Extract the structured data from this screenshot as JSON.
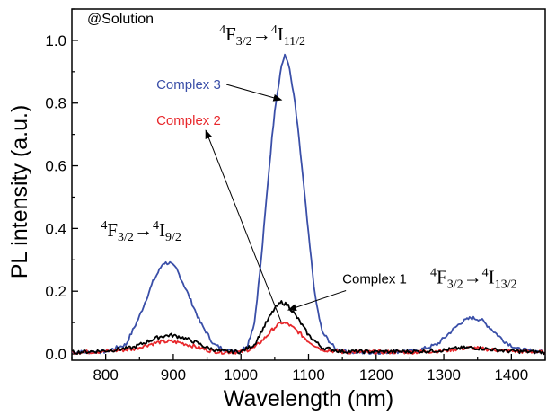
{
  "chart_data": {
    "type": "line",
    "title": "",
    "xlabel": "Wavelength (nm)",
    "ylabel": "PL intensity (a.u.)",
    "xlim": [
      750,
      1450
    ],
    "ylim": [
      -0.02,
      1.1
    ],
    "xticks": [
      800,
      900,
      1000,
      1100,
      1200,
      1300,
      1400
    ],
    "yticks": [
      0.0,
      0.2,
      0.4,
      0.6,
      0.8,
      1.0
    ],
    "xtick_labels": [
      "800",
      "900",
      "1000",
      "1100",
      "1200",
      "1300",
      "1400"
    ],
    "ytick_labels": [
      "0.0",
      "0.2",
      "0.4",
      "0.6",
      "0.8",
      "1.0"
    ],
    "grid": false,
    "corner_label": "@Solution",
    "series": [
      {
        "name": "Complex 3",
        "color": "#3a4fa8",
        "x": [
          750,
          800,
          830,
          850,
          870,
          885,
          895,
          905,
          920,
          940,
          960,
          980,
          1000,
          1010,
          1020,
          1030,
          1040,
          1050,
          1060,
          1065,
          1070,
          1080,
          1090,
          1100,
          1110,
          1120,
          1140,
          1160,
          1200,
          1260,
          1290,
          1310,
          1325,
          1340,
          1355,
          1370,
          1390,
          1410,
          1450
        ],
        "y": [
          0.005,
          0.008,
          0.03,
          0.12,
          0.23,
          0.29,
          0.29,
          0.27,
          0.2,
          0.1,
          0.03,
          0.01,
          0.01,
          0.03,
          0.1,
          0.3,
          0.55,
          0.78,
          0.92,
          0.95,
          0.93,
          0.8,
          0.6,
          0.38,
          0.18,
          0.07,
          0.015,
          0.005,
          0.005,
          0.01,
          0.03,
          0.07,
          0.1,
          0.115,
          0.11,
          0.08,
          0.04,
          0.015,
          0.005
        ]
      },
      {
        "name": "Complex 2",
        "color": "#e8282c",
        "x": [
          750,
          800,
          840,
          860,
          880,
          895,
          910,
          930,
          950,
          970,
          1000,
          1020,
          1035,
          1050,
          1060,
          1070,
          1085,
          1100,
          1120,
          1150,
          1200,
          1260,
          1300,
          1320,
          1340,
          1360,
          1390,
          1450
        ],
        "y": [
          0.005,
          0.008,
          0.015,
          0.028,
          0.038,
          0.04,
          0.036,
          0.025,
          0.012,
          0.006,
          0.006,
          0.02,
          0.05,
          0.085,
          0.1,
          0.095,
          0.07,
          0.04,
          0.014,
          0.006,
          0.006,
          0.006,
          0.01,
          0.016,
          0.02,
          0.016,
          0.01,
          0.005
        ]
      },
      {
        "name": "Complex 1",
        "color": "#000000",
        "x": [
          750,
          800,
          840,
          860,
          880,
          895,
          910,
          930,
          950,
          970,
          1000,
          1020,
          1035,
          1050,
          1060,
          1070,
          1085,
          1100,
          1120,
          1150,
          1200,
          1260,
          1300,
          1320,
          1340,
          1360,
          1390,
          1450
        ],
        "y": [
          0.005,
          0.01,
          0.02,
          0.038,
          0.055,
          0.06,
          0.055,
          0.04,
          0.02,
          0.008,
          0.007,
          0.03,
          0.09,
          0.145,
          0.165,
          0.155,
          0.11,
          0.06,
          0.02,
          0.008,
          0.007,
          0.008,
          0.012,
          0.018,
          0.02,
          0.017,
          0.01,
          0.005
        ]
      }
    ],
    "annotations": {
      "legend_labels": [
        {
          "text": "Complex 3",
          "color": "#3a4fa8",
          "at": [
            875,
            0.845
          ],
          "arrow_to": [
            1060,
            0.81
          ]
        },
        {
          "text": "Complex 2",
          "color": "#e8282c",
          "at": [
            875,
            0.73
          ],
          "arrow_to": [
            1060,
            0.1
          ]
        },
        {
          "text": "Complex 1",
          "color": "#000000",
          "at": [
            1150,
            0.225
          ],
          "arrow_to": [
            1070,
            0.14
          ]
        }
      ],
      "transitions": [
        {
          "id": "t1",
          "base1": "F",
          "sup1": "4",
          "sub1": "3/2",
          "arrow": "→",
          "sup2": "4",
          "base2": "I",
          "sub2": "11/2",
          "at": [
            968,
            1.0
          ]
        },
        {
          "id": "t2",
          "base1": "F",
          "sup1": "4",
          "sub1": "3/2",
          "arrow": "→",
          "sup2": "4",
          "base2": "I",
          "sub2": "9/2",
          "at": [
            793,
            0.375
          ]
        },
        {
          "id": "t3",
          "base1": "F",
          "sup1": "4",
          "sub1": "3/2",
          "arrow": "→",
          "sup2": "4",
          "base2": "I",
          "sub2": "13/2",
          "at": [
            1280,
            0.225
          ]
        }
      ]
    }
  }
}
